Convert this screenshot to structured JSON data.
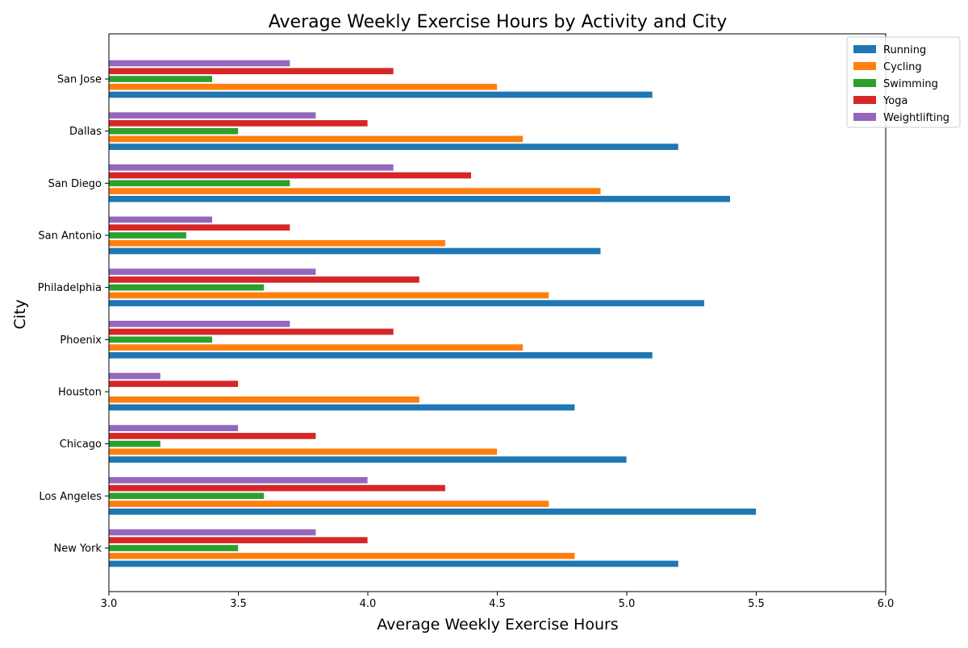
{
  "chart_data": {
    "type": "bar",
    "orientation": "horizontal",
    "title": "Average Weekly Exercise Hours by Activity and City",
    "xlabel": "Average Weekly Exercise Hours",
    "ylabel": "City",
    "xlim": [
      3.0,
      6.0
    ],
    "xticks": [
      "3.0",
      "3.5",
      "4.0",
      "4.5",
      "5.0",
      "5.5",
      "6.0"
    ],
    "grid": false,
    "legend_position": "top-right",
    "categories": [
      "New York",
      "Los Angeles",
      "Chicago",
      "Houston",
      "Phoenix",
      "Philadelphia",
      "San Antonio",
      "San Diego",
      "Dallas",
      "San Jose"
    ],
    "series": [
      {
        "name": "Running",
        "color": "#1f77b4",
        "values": [
          5.2,
          5.5,
          5.0,
          4.8,
          5.1,
          5.3,
          4.9,
          5.4,
          5.2,
          5.1
        ]
      },
      {
        "name": "Cycling",
        "color": "#ff7f0e",
        "values": [
          4.8,
          4.7,
          4.5,
          4.2,
          4.6,
          4.7,
          4.3,
          4.9,
          4.6,
          4.5
        ]
      },
      {
        "name": "Swimming",
        "color": "#2ca02c",
        "values": [
          3.5,
          3.6,
          3.2,
          3.0,
          3.4,
          3.6,
          3.3,
          3.7,
          3.5,
          3.4
        ]
      },
      {
        "name": "Yoga",
        "color": "#d62728",
        "values": [
          4.0,
          4.3,
          3.8,
          3.5,
          4.1,
          4.2,
          3.7,
          4.4,
          4.0,
          4.1
        ]
      },
      {
        "name": "Weightlifting",
        "color": "#9467bd",
        "values": [
          3.8,
          4.0,
          3.5,
          3.2,
          3.7,
          3.8,
          3.4,
          4.1,
          3.8,
          3.7
        ]
      }
    ]
  }
}
